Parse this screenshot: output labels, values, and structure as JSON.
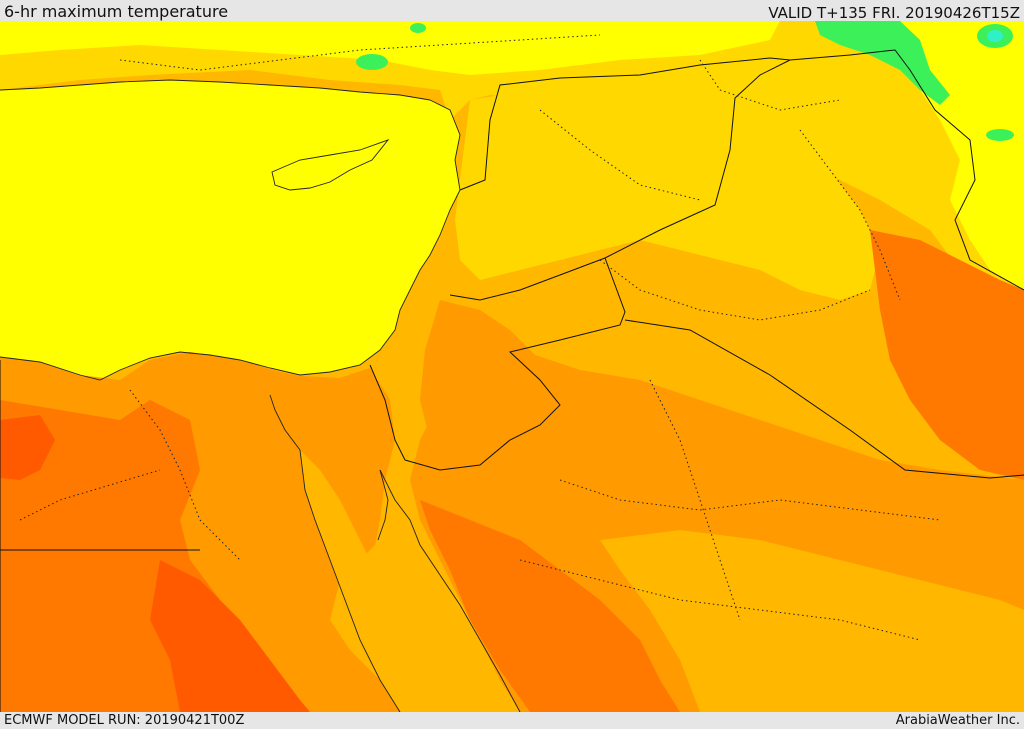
{
  "header": {
    "title": "6-hr maximum temperature",
    "valid": "VALID T+135 FRI. 20190426T15Z"
  },
  "footer": {
    "model_run": "ECMWF MODEL RUN: 20190421T00Z",
    "credit": "ArabiaWeather Inc."
  },
  "palette": {
    "sea": "#ffff00",
    "warm_yellow": "#ffd800",
    "light_orange": "#ffb700",
    "orange": "#ff9a00",
    "dark_orange": "#ff7800",
    "red_orange": "#ff5a00",
    "green": "#3cf05a",
    "cyan": "#30f0c8"
  }
}
